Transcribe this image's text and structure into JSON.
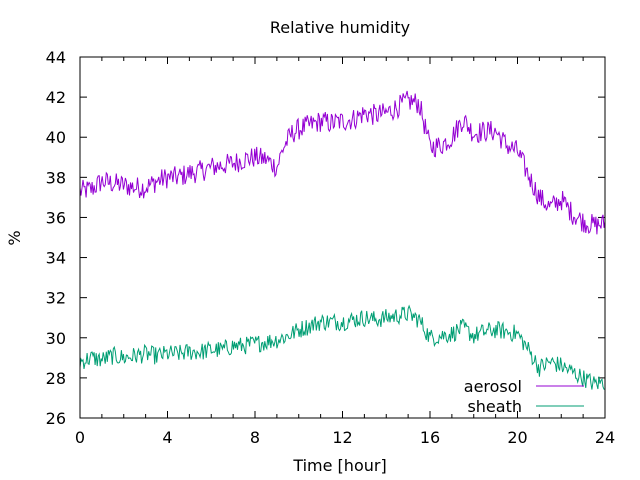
{
  "chart_data": {
    "type": "line",
    "title": "Relative humidity",
    "xlabel": "Time [hour]",
    "ylabel": "%",
    "xlim": [
      0,
      24
    ],
    "ylim": [
      26,
      44
    ],
    "xticks": [
      0,
      4,
      8,
      12,
      16,
      20,
      24
    ],
    "yticks": [
      26,
      28,
      30,
      32,
      34,
      36,
      38,
      40,
      42,
      44
    ],
    "grid": false,
    "legend_position": "bottom-right",
    "series": [
      {
        "name": "aerosol",
        "color": "#9400d3",
        "points": [
          [
            0,
            37.3
          ],
          [
            0.5,
            37.4
          ],
          [
            1,
            37.8
          ],
          [
            1.5,
            37.7
          ],
          [
            2,
            37.6
          ],
          [
            2.5,
            37.5
          ],
          [
            3,
            37.5
          ],
          [
            3.5,
            37.8
          ],
          [
            4,
            38.0
          ],
          [
            4.5,
            38.0
          ],
          [
            5,
            38.2
          ],
          [
            5.5,
            38.3
          ],
          [
            6,
            38.5
          ],
          [
            6.5,
            38.6
          ],
          [
            7,
            38.7
          ],
          [
            7.5,
            38.9
          ],
          [
            8,
            39.0
          ],
          [
            8.5,
            38.9
          ],
          [
            9,
            38.5
          ],
          [
            9.3,
            39.5
          ],
          [
            9.7,
            40.2
          ],
          [
            10,
            40.4
          ],
          [
            10.5,
            40.6
          ],
          [
            11,
            40.8
          ],
          [
            11.5,
            40.7
          ],
          [
            12,
            40.8
          ],
          [
            12.5,
            40.9
          ],
          [
            13,
            41.2
          ],
          [
            13.5,
            41.1
          ],
          [
            14,
            41.2
          ],
          [
            14.5,
            41.5
          ],
          [
            15,
            41.8
          ],
          [
            15.5,
            41.7
          ],
          [
            16,
            39.5
          ],
          [
            16.5,
            39.6
          ],
          [
            17,
            40.0
          ],
          [
            17.5,
            40.9
          ],
          [
            18,
            40.2
          ],
          [
            18.5,
            40.3
          ],
          [
            19,
            40.3
          ],
          [
            19.5,
            39.6
          ],
          [
            20,
            39.3
          ],
          [
            20.5,
            38.1
          ],
          [
            21,
            37.0
          ],
          [
            21.5,
            36.5
          ],
          [
            22,
            36.9
          ],
          [
            22.5,
            36.2
          ],
          [
            23,
            35.8
          ],
          [
            23.5,
            35.6
          ],
          [
            24,
            35.7
          ]
        ]
      },
      {
        "name": "sheath",
        "color": "#009e73",
        "points": [
          [
            0,
            28.8
          ],
          [
            0.5,
            29.0
          ],
          [
            1,
            28.9
          ],
          [
            1.5,
            29.1
          ],
          [
            2,
            29.0
          ],
          [
            2.5,
            29.1
          ],
          [
            3,
            29.2
          ],
          [
            3.5,
            29.1
          ],
          [
            4,
            29.2
          ],
          [
            4.5,
            29.2
          ],
          [
            5,
            29.3
          ],
          [
            5.5,
            29.3
          ],
          [
            6,
            29.4
          ],
          [
            6.5,
            29.4
          ],
          [
            7,
            29.6
          ],
          [
            7.5,
            29.6
          ],
          [
            8,
            29.7
          ],
          [
            8.5,
            29.8
          ],
          [
            9,
            29.9
          ],
          [
            9.5,
            30.1
          ],
          [
            10,
            30.4
          ],
          [
            10.5,
            30.6
          ],
          [
            11,
            30.8
          ],
          [
            11.5,
            30.8
          ],
          [
            12,
            30.8
          ],
          [
            12.5,
            30.9
          ],
          [
            13,
            31.0
          ],
          [
            13.5,
            30.9
          ],
          [
            14,
            31.0
          ],
          [
            14.5,
            31.1
          ],
          [
            15,
            31.2
          ],
          [
            15.5,
            30.9
          ],
          [
            16,
            30.0
          ],
          [
            16.5,
            30.1
          ],
          [
            17,
            30.2
          ],
          [
            17.5,
            30.5
          ],
          [
            18,
            30.1
          ],
          [
            18.5,
            30.3
          ],
          [
            19,
            30.4
          ],
          [
            19.5,
            30.3
          ],
          [
            20,
            30.2
          ],
          [
            20.5,
            29.4
          ],
          [
            21,
            28.5
          ],
          [
            21.5,
            28.8
          ],
          [
            22,
            28.6
          ],
          [
            22.5,
            28.3
          ],
          [
            23,
            28.0
          ],
          [
            23.5,
            27.7
          ],
          [
            24,
            27.8
          ]
        ]
      }
    ]
  }
}
